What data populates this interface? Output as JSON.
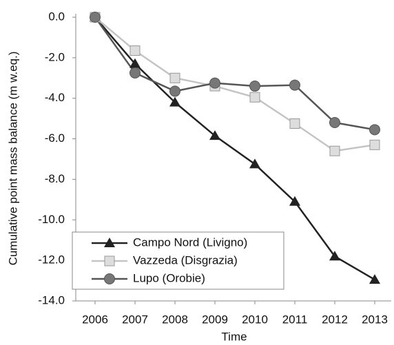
{
  "chart_data": {
    "type": "line",
    "x_label": "Time",
    "y_label": "Cumulative point mass balance (m w.eq.)",
    "categories": [
      "2006",
      "2007",
      "2008",
      "2009",
      "2010",
      "2011",
      "2012",
      "2013"
    ],
    "series": [
      {
        "name": "Campo Nord (Livigno)",
        "color": "#222222",
        "marker": "triangle",
        "values": [
          0,
          -2.3,
          -4.2,
          -5.85,
          -7.25,
          -9.1,
          -11.8,
          -12.95
        ]
      },
      {
        "name": "Vazzeda (Disgrazia)",
        "color": "#c4c4c4",
        "marker": "square",
        "values": [
          0,
          -1.65,
          -3.0,
          -3.4,
          -3.95,
          -5.25,
          -6.6,
          -6.3
        ]
      },
      {
        "name": "Lupo (Orobie)",
        "color": "#555555",
        "marker": "circle",
        "values": [
          0,
          -2.75,
          -3.65,
          -3.25,
          -3.4,
          -3.35,
          -5.2,
          -5.55
        ]
      }
    ],
    "ylim": [
      -14,
      0
    ],
    "yticks": [
      {
        "value": 0,
        "label": "0.0"
      },
      {
        "value": -2,
        "label": "-2.0"
      },
      {
        "value": -4,
        "label": "-4.0"
      },
      {
        "value": -6,
        "label": "-6.0"
      },
      {
        "value": -8,
        "label": "-8.0"
      },
      {
        "value": -10,
        "label": "-10.0"
      },
      {
        "value": -12,
        "label": "-12.0"
      },
      {
        "value": -14,
        "label": "-14.0"
      }
    ],
    "grid": false,
    "legend": "lower left"
  }
}
